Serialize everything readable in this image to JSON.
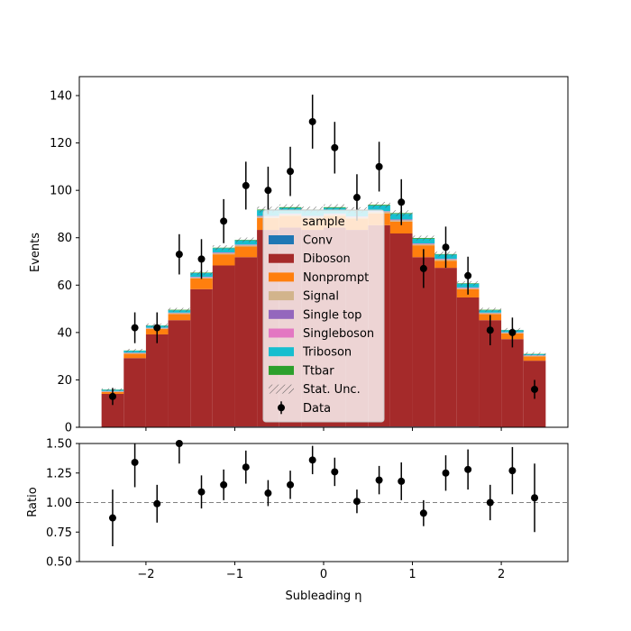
{
  "chart_data": [
    {
      "type": "bar",
      "stacked": true,
      "ylabel": "Events",
      "xlabel": "Subleading η",
      "xlim": [
        -2.75,
        2.75
      ],
      "ylim": [
        0,
        148
      ],
      "xticks": [
        "−2",
        "−1",
        "0",
        "1",
        "2"
      ],
      "xtick_values": [
        -2,
        -1,
        0,
        1,
        2
      ],
      "yticks": [
        "0",
        "20",
        "40",
        "60",
        "80",
        "100",
        "120",
        "140"
      ],
      "ytick_values": [
        0,
        20,
        40,
        60,
        80,
        100,
        120,
        140
      ],
      "bin_edges": [
        -2.5,
        -2.25,
        -2.0,
        -1.75,
        -1.5,
        -1.25,
        -1.0,
        -0.75,
        -0.5,
        -0.25,
        0.0,
        0.25,
        0.5,
        0.75,
        1.0,
        1.25,
        1.5,
        1.75,
        2.0,
        2.25,
        2.5
      ],
      "series": [
        {
          "name": "Conv",
          "color": "#1f77b4",
          "values": [
            0.1,
            0.2,
            0.2,
            0.2,
            0.3,
            0.3,
            0.3,
            0.3,
            0.3,
            0.3,
            0.3,
            0.3,
            0.3,
            0.3,
            0.3,
            0.3,
            0.3,
            0.2,
            0.2,
            0.1
          ]
        },
        {
          "name": "Diboson",
          "color": "#a52a2a",
          "values": [
            14.0,
            29.0,
            39.0,
            45.0,
            58.0,
            68.0,
            71.5,
            83.0,
            84.0,
            83.0,
            84.0,
            83.0,
            85.0,
            81.5,
            71.5,
            67.0,
            54.5,
            45.0,
            37.0,
            28.0
          ]
        },
        {
          "name": "Nonprompt",
          "color": "#ff7f0e",
          "values": [
            0.8,
            1.8,
            2.3,
            2.6,
            4.5,
            4.7,
            4.5,
            5.0,
            5.0,
            5.0,
            5.0,
            4.8,
            5.0,
            5.0,
            5.0,
            3.0,
            3.5,
            2.6,
            2.4,
            1.8
          ]
        },
        {
          "name": "Signal",
          "color": "#d2b48c",
          "values": [
            0.2,
            0.3,
            0.3,
            0.4,
            0.4,
            0.5,
            0.5,
            0.6,
            0.6,
            0.6,
            0.6,
            0.6,
            0.6,
            0.6,
            0.5,
            0.5,
            0.4,
            0.4,
            0.3,
            0.3
          ]
        },
        {
          "name": "Single top",
          "color": "#9467bd",
          "values": [
            0.1,
            0.1,
            0.1,
            0.1,
            0.1,
            0.1,
            0.1,
            0.1,
            0.1,
            0.1,
            0.1,
            0.1,
            0.1,
            0.1,
            0.1,
            0.1,
            0.1,
            0.1,
            0.1,
            0.1
          ]
        },
        {
          "name": "Singleboson",
          "color": "#e377c2",
          "values": [
            0.1,
            0.1,
            0.1,
            0.1,
            0.2,
            0.2,
            0.2,
            0.2,
            0.2,
            0.2,
            0.2,
            0.2,
            0.2,
            0.2,
            0.2,
            0.2,
            0.2,
            0.1,
            0.1,
            0.1
          ]
        },
        {
          "name": "Triboson",
          "color": "#17becf",
          "values": [
            0.5,
            0.8,
            0.9,
            1.0,
            1.6,
            1.8,
            1.8,
            2.4,
            2.4,
            2.4,
            2.4,
            2.4,
            2.4,
            2.4,
            2.0,
            1.8,
            1.6,
            1.0,
            0.9,
            0.5
          ]
        },
        {
          "name": "Ttbar",
          "color": "#2ca02c",
          "values": [
            0.1,
            0.1,
            0.1,
            0.2,
            0.2,
            0.2,
            0.2,
            0.3,
            0.3,
            0.3,
            0.3,
            0.3,
            0.3,
            0.3,
            0.3,
            0.2,
            0.2,
            0.2,
            0.1,
            0.1
          ]
        }
      ],
      "stat_unc": {
        "name": "Stat. Unc.",
        "values": [
          0.5,
          0.7,
          0.8,
          0.8,
          0.9,
          1.0,
          1.0,
          1.2,
          1.2,
          1.2,
          1.2,
          1.2,
          1.2,
          1.2,
          1.0,
          1.0,
          0.9,
          0.8,
          0.8,
          0.7
        ]
      },
      "data": {
        "name": "Data",
        "x": [
          -2.375,
          -2.125,
          -1.875,
          -1.625,
          -1.375,
          -1.125,
          -0.875,
          -0.625,
          -0.375,
          -0.125,
          0.125,
          0.375,
          0.625,
          0.875,
          1.125,
          1.375,
          1.625,
          1.875,
          2.125,
          2.375
        ],
        "y": [
          13,
          42,
          42,
          73,
          71,
          87,
          102,
          100,
          108,
          129,
          118,
          97,
          110,
          95,
          67,
          76,
          64,
          41,
          40,
          16
        ],
        "yerr": [
          3.6,
          6.5,
          6.5,
          8.5,
          8.4,
          9.3,
          10.1,
          10.0,
          10.4,
          11.4,
          10.9,
          9.8,
          10.5,
          9.7,
          8.2,
          8.7,
          8.0,
          6.4,
          6.3,
          4.0
        ]
      },
      "legend": {
        "title": "sample",
        "placement": "center"
      }
    },
    {
      "type": "scatter",
      "ylabel": "Ratio",
      "xlabel": "Subleading η",
      "xlim": [
        -2.75,
        2.75
      ],
      "ylim": [
        0.5,
        1.5
      ],
      "yticks": [
        "0.50",
        "0.75",
        "1.00",
        "1.25",
        "1.50"
      ],
      "ytick_values": [
        0.5,
        0.75,
        1.0,
        1.25,
        1.5
      ],
      "reference_line": 1.0,
      "x": [
        -2.375,
        -2.125,
        -1.875,
        -1.625,
        -1.375,
        -1.125,
        -0.875,
        -0.625,
        -0.375,
        -0.125,
        0.125,
        0.375,
        0.625,
        0.875,
        1.125,
        1.375,
        1.625,
        1.875,
        2.125,
        2.375
      ],
      "y": [
        0.87,
        1.34,
        0.99,
        1.5,
        1.09,
        1.15,
        1.3,
        1.08,
        1.15,
        1.36,
        1.26,
        1.01,
        1.19,
        1.18,
        0.91,
        1.25,
        1.28,
        1.0,
        1.27,
        1.04
      ],
      "yerr": [
        0.24,
        0.21,
        0.16,
        0.17,
        0.14,
        0.13,
        0.14,
        0.11,
        0.12,
        0.12,
        0.12,
        0.1,
        0.12,
        0.16,
        0.11,
        0.15,
        0.17,
        0.15,
        0.2,
        0.29
      ]
    }
  ]
}
